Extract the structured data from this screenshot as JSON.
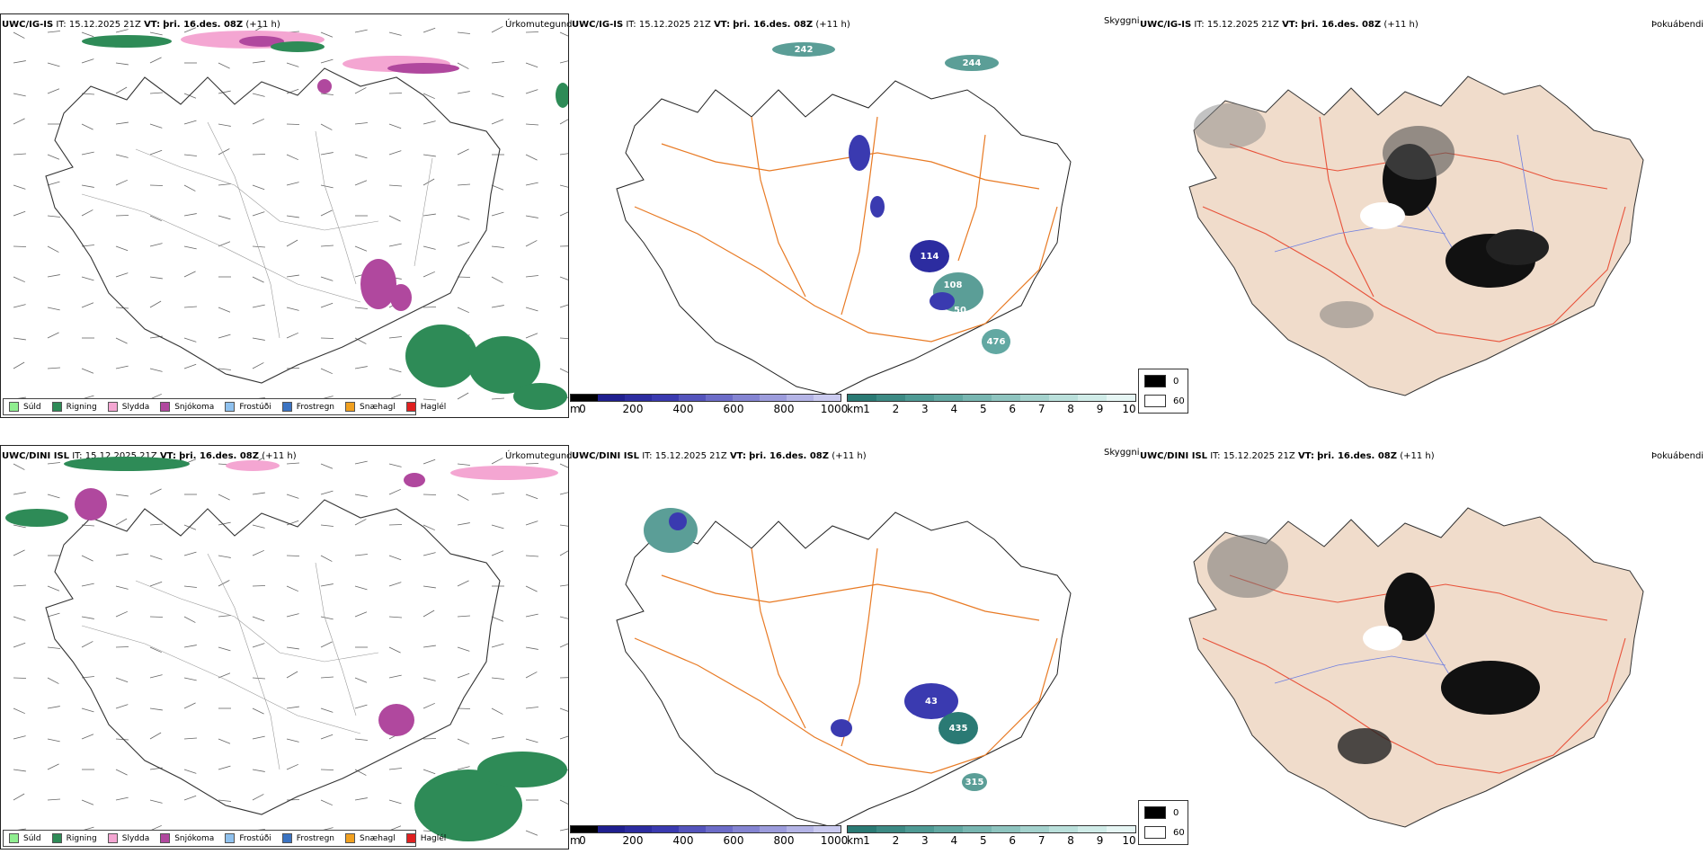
{
  "rows": [
    {
      "precip_panel": {
        "model": "UWC/IG-IS",
        "it_label": "IT:",
        "it_value": "15.12.2025 21Z",
        "vt_label": "VT:",
        "vt_value": "þri. 16.des. 08Z",
        "offset": "(+11 h)",
        "title": "Úrkomutegund"
      },
      "vis_panel": {
        "model": "UWC/IG-IS",
        "it_label": "IT:",
        "it_value": "15.12.2025 21Z",
        "vt_label": "VT:",
        "vt_value": "þri. 16.des. 08Z",
        "offset": "(+11 h)",
        "title": "Skyggni",
        "labels": [
          "242",
          "244",
          "114",
          "108",
          "50",
          "476"
        ]
      },
      "fog_panel": {
        "model": "UWC/IG-IS",
        "it_label": "IT:",
        "it_value": "15.12.2025 21Z",
        "vt_label": "VT:",
        "vt_value": "þri. 16.des. 08Z",
        "offset": "(+11 h)",
        "title": "Þokuábendi"
      }
    },
    {
      "precip_panel": {
        "model": "UWC/DINI ISL",
        "it_label": "IT:",
        "it_value": "15.12.2025 21Z",
        "vt_label": "VT:",
        "vt_value": "þri. 16.des. 08Z",
        "offset": "(+11 h)",
        "title": "Úrkomutegund"
      },
      "vis_panel": {
        "model": "UWC/DINI ISL",
        "it_label": "IT:",
        "it_value": "15.12.2025 21Z",
        "vt_label": "VT:",
        "vt_value": "þri. 16.des. 08Z",
        "offset": "(+11 h)",
        "title": "Skyggni",
        "labels": [
          "43",
          "435",
          "315"
        ]
      },
      "fog_panel": {
        "model": "UWC/DINI ISL",
        "it_label": "IT:",
        "it_value": "15.12.2025 21Z",
        "vt_label": "VT:",
        "vt_value": "þri. 16.des. 08Z",
        "offset": "(+11 h)",
        "title": "Þokuábendi"
      }
    }
  ],
  "precip_legend": [
    {
      "label": "Súld",
      "color": "#90ee90"
    },
    {
      "label": "Rigning",
      "color": "#2e8b57"
    },
    {
      "label": "Slydda",
      "color": "#f4a6d2"
    },
    {
      "label": "Snjókoma",
      "color": "#b0489e"
    },
    {
      "label": "Frostúði",
      "color": "#8fc1ee"
    },
    {
      "label": "Frostregn",
      "color": "#3b73c2"
    },
    {
      "label": "Snæhagl",
      "color": "#f0a020"
    },
    {
      "label": "Haglél",
      "color": "#e02020"
    }
  ],
  "vis_colorbar_m": {
    "unit": "m",
    "ticks": [
      "0",
      "200",
      "400",
      "600",
      "800",
      "1000"
    ],
    "colors": [
      "#000000",
      "#1f1f8f",
      "#2c2ca0",
      "#3a3ab0",
      "#5454bc",
      "#6c6cc8",
      "#8484d2",
      "#9c9cdc",
      "#b4b4e6",
      "#cacaf0"
    ]
  },
  "vis_colorbar_km": {
    "unit": "km",
    "ticks": [
      "1",
      "2",
      "3",
      "4",
      "5",
      "6",
      "7",
      "8",
      "9",
      "10"
    ],
    "colors": [
      "#2a7a74",
      "#3c8a84",
      "#4e9a94",
      "#62a8a2",
      "#78b6b1",
      "#8ec4bf",
      "#a4d2cd",
      "#bae0db",
      "#d0ece8",
      "#e6f6f4"
    ]
  },
  "fog_legend": [
    {
      "label": "0",
      "color": "#000000"
    },
    {
      "label": "60",
      "color": "#ffffff"
    }
  ]
}
